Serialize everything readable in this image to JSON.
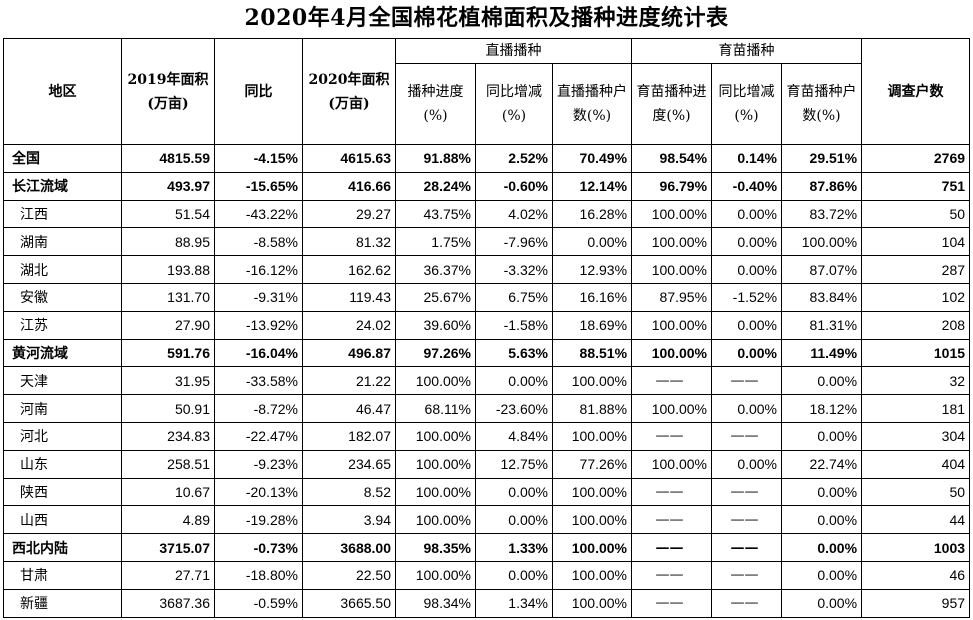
{
  "title": "2020年4月全国棉花植棉面积及播种进度统计表",
  "headers": {
    "region": "地区",
    "area2019": "2019年面积(万亩)",
    "yoy": "同比",
    "area2020": "2020年面积(万亩)",
    "direct_group": "直播播种",
    "direct_progress": "播种进度(%)",
    "direct_change": "同比增减(%)",
    "direct_households": "直播播种户数(%)",
    "seedling_group": "育苗播种",
    "seedling_progress": "育苗播种进度(%)",
    "seedling_change": "同比增减(%)",
    "seedling_households": "育苗播种户数(%)",
    "survey": "调查户数"
  },
  "rows": [
    {
      "bold": true,
      "cells": [
        "全国",
        "4815.59",
        "-4.15%",
        "4615.63",
        "91.88%",
        "2.52%",
        "70.49%",
        "98.54%",
        "0.14%",
        "29.51%",
        "2769"
      ]
    },
    {
      "bold": true,
      "cells": [
        "长江流域",
        "493.97",
        "-15.65%",
        "416.66",
        "28.24%",
        "-0.60%",
        "12.14%",
        "96.79%",
        "-0.40%",
        "87.86%",
        "751"
      ]
    },
    {
      "bold": false,
      "cells": [
        "江西",
        "51.54",
        "-43.22%",
        "29.27",
        "43.75%",
        "4.02%",
        "16.28%",
        "100.00%",
        "0.00%",
        "83.72%",
        "50"
      ]
    },
    {
      "bold": false,
      "cells": [
        "湖南",
        "88.95",
        "-8.58%",
        "81.32",
        "1.75%",
        "-7.96%",
        "0.00%",
        "100.00%",
        "0.00%",
        "100.00%",
        "104"
      ]
    },
    {
      "bold": false,
      "cells": [
        "湖北",
        "193.88",
        "-16.12%",
        "162.62",
        "36.37%",
        "-3.32%",
        "12.93%",
        "100.00%",
        "0.00%",
        "87.07%",
        "287"
      ]
    },
    {
      "bold": false,
      "cells": [
        "安徽",
        "131.70",
        "-9.31%",
        "119.43",
        "25.67%",
        "6.75%",
        "16.16%",
        "87.95%",
        "-1.52%",
        "83.84%",
        "102"
      ]
    },
    {
      "bold": false,
      "cells": [
        "江苏",
        "27.90",
        "-13.92%",
        "24.02",
        "39.60%",
        "-1.58%",
        "18.69%",
        "100.00%",
        "0.00%",
        "81.31%",
        "208"
      ]
    },
    {
      "bold": true,
      "cells": [
        "黄河流域",
        "591.76",
        "-16.04%",
        "496.87",
        "97.26%",
        "5.63%",
        "88.51%",
        "100.00%",
        "0.00%",
        "11.49%",
        "1015"
      ]
    },
    {
      "bold": false,
      "cells": [
        "天津",
        "31.95",
        "-33.58%",
        "21.22",
        "100.00%",
        "0.00%",
        "100.00%",
        "——",
        "——",
        "0.00%",
        "32"
      ]
    },
    {
      "bold": false,
      "cells": [
        "河南",
        "50.91",
        "-8.72%",
        "46.47",
        "68.11%",
        "-23.60%",
        "81.88%",
        "100.00%",
        "0.00%",
        "18.12%",
        "181"
      ]
    },
    {
      "bold": false,
      "cells": [
        "河北",
        "234.83",
        "-22.47%",
        "182.07",
        "100.00%",
        "4.84%",
        "100.00%",
        "——",
        "——",
        "0.00%",
        "304"
      ]
    },
    {
      "bold": false,
      "cells": [
        "山东",
        "258.51",
        "-9.23%",
        "234.65",
        "100.00%",
        "12.75%",
        "77.26%",
        "100.00%",
        "0.00%",
        "22.74%",
        "404"
      ]
    },
    {
      "bold": false,
      "cells": [
        "陕西",
        "10.67",
        "-20.13%",
        "8.52",
        "100.00%",
        "0.00%",
        "100.00%",
        "——",
        "——",
        "0.00%",
        "50"
      ]
    },
    {
      "bold": false,
      "cells": [
        "山西",
        "4.89",
        "-19.28%",
        "3.94",
        "100.00%",
        "0.00%",
        "100.00%",
        "——",
        "——",
        "0.00%",
        "44"
      ]
    },
    {
      "bold": true,
      "cells": [
        "西北内陆",
        "3715.07",
        "-0.73%",
        "3688.00",
        "98.35%",
        "1.33%",
        "100.00%",
        "——",
        "——",
        "0.00%",
        "1003"
      ]
    },
    {
      "bold": false,
      "cells": [
        "甘肃",
        "27.71",
        "-18.80%",
        "22.50",
        "100.00%",
        "0.00%",
        "100.00%",
        "——",
        "——",
        "0.00%",
        "46"
      ]
    },
    {
      "bold": false,
      "cells": [
        "新疆",
        "3687.36",
        "-0.59%",
        "3665.50",
        "98.34%",
        "1.34%",
        "100.00%",
        "——",
        "——",
        "0.00%",
        "957"
      ]
    }
  ]
}
